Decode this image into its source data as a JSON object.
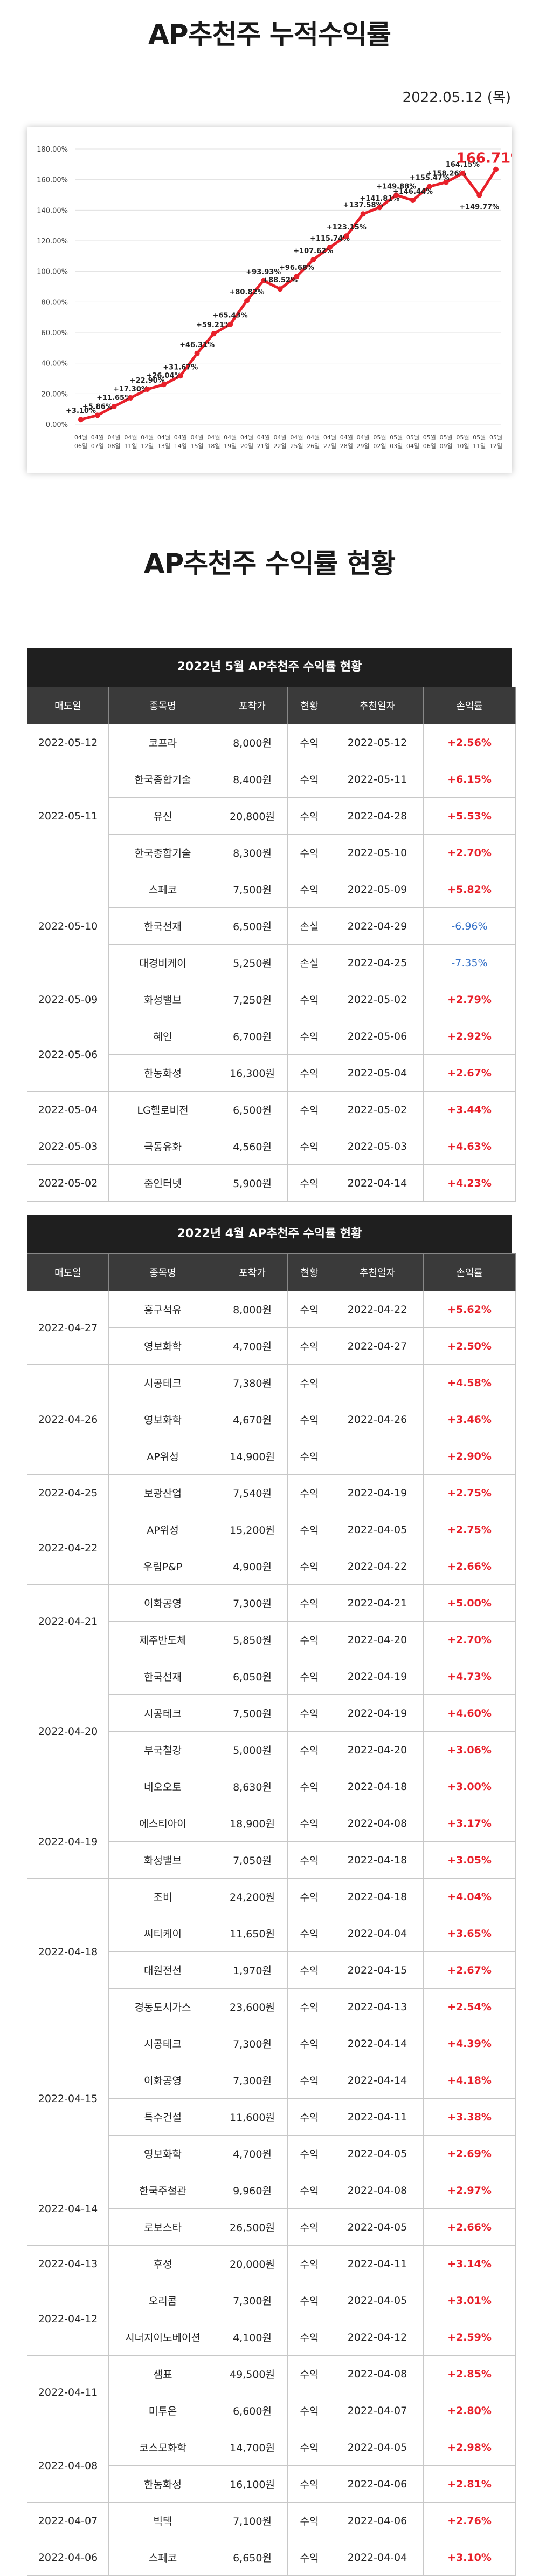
{
  "header": {
    "title": "AP추천주 누적수익률",
    "date": "2022.05.12 (목)"
  },
  "chart_data": {
    "type": "line",
    "ylim": [
      0,
      180
    ],
    "yticks": [
      "0.00%",
      "20.00%",
      "40.00%",
      "60.00%",
      "80.00%",
      "100.00%",
      "120.00%",
      "140.00%",
      "160.00%",
      "180.00%"
    ],
    "categories": [
      "04월 06일",
      "04월 07일",
      "04월 08일",
      "04월 11일",
      "04월 12일",
      "04월 13일",
      "04월 14일",
      "04월 15일",
      "04월 18일",
      "04월 19일",
      "04월 20일",
      "04월 21일",
      "04월 22일",
      "04월 25일",
      "04월 26일",
      "04월 27일",
      "04월 28일",
      "04월 29일",
      "05월 02일",
      "05월 03일",
      "05월 04일",
      "05월 06일",
      "05월 09일",
      "05월 10일",
      "05월 11일",
      "05월 12일"
    ],
    "values": [
      3.1,
      5.86,
      11.65,
      17.3,
      22.9,
      26.04,
      31.67,
      46.31,
      59.21,
      65.43,
      80.82,
      93.93,
      88.52,
      96.68,
      107.62,
      115.74,
      123.15,
      137.58,
      141.81,
      149.88,
      146.44,
      155.47,
      158.26,
      164.15,
      149.77,
      166.71
    ],
    "labels": [
      "+3.10%",
      "+5.86%",
      "+11.65%",
      "+17.30%",
      "+22.90%",
      "+26.04%",
      "+31.67%",
      "+46.31%",
      "+59.21%",
      "+65.43%",
      "+80.82%",
      "+93.93%",
      "+88.52%",
      "+96.68%",
      "+107.62%",
      "+115.74%",
      "+123.15%",
      "+137.58%",
      "+141.81%",
      "+149.88%",
      "+146.44%",
      "+155.47%",
      "+158.26%",
      "164.15%",
      "+149.77%",
      "166.71%"
    ],
    "line_color": "#e8202a"
  },
  "section_title": "AP추천주 수익률 현황",
  "columns": [
    "매도일",
    "종목명",
    "포착가",
    "현황",
    "추천일자",
    "손익률"
  ],
  "tables": [
    {
      "title": "2022년 5월 AP추천주 수익률 현황",
      "groups": [
        {
          "date": "2022-05-12",
          "rows": [
            {
              "name": "코프라",
              "price": "8,000원",
              "status": "수익",
              "rec": "2022-05-12",
              "rate": "+2.56%",
              "sign": "pos"
            }
          ]
        },
        {
          "date": "2022-05-11",
          "rows": [
            {
              "name": "한국종합기술",
              "price": "8,400원",
              "status": "수익",
              "rec": "2022-05-11",
              "rate": "+6.15%",
              "sign": "pos"
            },
            {
              "name": "유신",
              "price": "20,800원",
              "status": "수익",
              "rec": "2022-04-28",
              "rate": "+5.53%",
              "sign": "pos"
            },
            {
              "name": "한국종합기술",
              "price": "8,300원",
              "status": "수익",
              "rec": "2022-05-10",
              "rate": "+2.70%",
              "sign": "pos"
            }
          ]
        },
        {
          "date": "2022-05-10",
          "rows": [
            {
              "name": "스페코",
              "price": "7,500원",
              "status": "수익",
              "rec": "2022-05-09",
              "rate": "+5.82%",
              "sign": "pos"
            },
            {
              "name": "한국선재",
              "price": "6,500원",
              "status": "손실",
              "rec": "2022-04-29",
              "rate": "-6.96%",
              "sign": "neg"
            },
            {
              "name": "대경비케이",
              "price": "5,250원",
              "status": "손실",
              "rec": "2022-04-25",
              "rate": "-7.35%",
              "sign": "neg"
            }
          ]
        },
        {
          "date": "2022-05-09",
          "rows": [
            {
              "name": "화성밸브",
              "price": "7,250원",
              "status": "수익",
              "rec": "2022-05-02",
              "rate": "+2.79%",
              "sign": "pos"
            }
          ]
        },
        {
          "date": "2022-05-06",
          "rows": [
            {
              "name": "혜인",
              "price": "6,700원",
              "status": "수익",
              "rec": "2022-05-06",
              "rate": "+2.92%",
              "sign": "pos"
            },
            {
              "name": "한농화성",
              "price": "16,300원",
              "status": "수익",
              "rec": "2022-05-04",
              "rate": "+2.67%",
              "sign": "pos"
            }
          ]
        },
        {
          "date": "2022-05-04",
          "rows": [
            {
              "name": "LG헬로비전",
              "price": "6,500원",
              "status": "수익",
              "rec": "2022-05-02",
              "rate": "+3.44%",
              "sign": "pos"
            }
          ]
        },
        {
          "date": "2022-05-03",
          "rows": [
            {
              "name": "극동유화",
              "price": "4,560원",
              "status": "수익",
              "rec": "2022-05-03",
              "rate": "+4.63%",
              "sign": "pos"
            }
          ]
        },
        {
          "date": "2022-05-02",
          "rows": [
            {
              "name": "줌인터넷",
              "price": "5,900원",
              "status": "수익",
              "rec": "2022-04-14",
              "rate": "+4.23%",
              "sign": "pos"
            }
          ]
        }
      ]
    },
    {
      "title": "2022년 4월 AP추천주 수익률 현황",
      "groups": [
        {
          "date": "2022-04-27",
          "rows": [
            {
              "name": "흥구석유",
              "price": "8,000원",
              "status": "수익",
              "rec": "2022-04-22",
              "rate": "+5.62%",
              "sign": "pos"
            },
            {
              "name": "영보화학",
              "price": "4,700원",
              "status": "수익",
              "rec": "2022-04-27",
              "rate": "+2.50%",
              "sign": "pos"
            }
          ]
        },
        {
          "date": "2022-04-26",
          "rec_merged": "2022-04-26",
          "rows": [
            {
              "name": "시공테크",
              "price": "7,380원",
              "status": "수익",
              "rate": "+4.58%",
              "sign": "pos"
            },
            {
              "name": "영보화학",
              "price": "4,670원",
              "status": "수익",
              "rate": "+3.46%",
              "sign": "pos"
            },
            {
              "name": "AP위성",
              "price": "14,900원",
              "status": "수익",
              "rate": "+2.90%",
              "sign": "pos"
            }
          ]
        },
        {
          "date": "2022-04-25",
          "rows": [
            {
              "name": "보광산업",
              "price": "7,540원",
              "status": "수익",
              "rec": "2022-04-19",
              "rate": "+2.75%",
              "sign": "pos"
            }
          ]
        },
        {
          "date": "2022-04-22",
          "rows": [
            {
              "name": "AP위성",
              "price": "15,200원",
              "status": "수익",
              "rec": "2022-04-05",
              "rate": "+2.75%",
              "sign": "pos"
            },
            {
              "name": "우림P&P",
              "price": "4,900원",
              "status": "수익",
              "rec": "2022-04-22",
              "rate": "+2.66%",
              "sign": "pos"
            }
          ]
        },
        {
          "date": "2022-04-21",
          "rows": [
            {
              "name": "이화공영",
              "price": "7,300원",
              "status": "수익",
              "rec": "2022-04-21",
              "rate": "+5.00%",
              "sign": "pos"
            },
            {
              "name": "제주반도체",
              "price": "5,850원",
              "status": "수익",
              "rec": "2022-04-20",
              "rate": "+2.70%",
              "sign": "pos"
            }
          ]
        },
        {
          "date": "2022-04-20",
          "rows": [
            {
              "name": "한국선재",
              "price": "6,050원",
              "status": "수익",
              "rec": "2022-04-19",
              "rate": "+4.73%",
              "sign": "pos"
            },
            {
              "name": "시공테크",
              "price": "7,500원",
              "status": "수익",
              "rec": "2022-04-19",
              "rate": "+4.60%",
              "sign": "pos"
            },
            {
              "name": "부국철강",
              "price": "5,000원",
              "status": "수익",
              "rec": "2022-04-20",
              "rate": "+3.06%",
              "sign": "pos"
            },
            {
              "name": "네오오토",
              "price": "8,630원",
              "status": "수익",
              "rec": "2022-04-18",
              "rate": "+3.00%",
              "sign": "pos"
            }
          ]
        },
        {
          "date": "2022-04-19",
          "rows": [
            {
              "name": "에스티아이",
              "price": "18,900원",
              "status": "수익",
              "rec": "2022-04-08",
              "rate": "+3.17%",
              "sign": "pos"
            },
            {
              "name": "화성밸브",
              "price": "7,050원",
              "status": "수익",
              "rec": "2022-04-18",
              "rate": "+3.05%",
              "sign": "pos"
            }
          ]
        },
        {
          "date": "2022-04-18",
          "rows": [
            {
              "name": "조비",
              "price": "24,200원",
              "status": "수익",
              "rec": "2022-04-18",
              "rate": "+4.04%",
              "sign": "pos"
            },
            {
              "name": "씨티케이",
              "price": "11,650원",
              "status": "수익",
              "rec": "2022-04-04",
              "rate": "+3.65%",
              "sign": "pos"
            },
            {
              "name": "대원전선",
              "price": "1,970원",
              "status": "수익",
              "rec": "2022-04-15",
              "rate": "+2.67%",
              "sign": "pos"
            },
            {
              "name": "경동도시가스",
              "price": "23,600원",
              "status": "수익",
              "rec": "2022-04-13",
              "rate": "+2.54%",
              "sign": "pos"
            }
          ]
        },
        {
          "date": "2022-04-15",
          "rows": [
            {
              "name": "시공테크",
              "price": "7,300원",
              "status": "수익",
              "rec": "2022-04-14",
              "rate": "+4.39%",
              "sign": "pos"
            },
            {
              "name": "이화공영",
              "price": "7,300원",
              "status": "수익",
              "rec": "2022-04-14",
              "rate": "+4.18%",
              "sign": "pos"
            },
            {
              "name": "특수건설",
              "price": "11,600원",
              "status": "수익",
              "rec": "2022-04-11",
              "rate": "+3.38%",
              "sign": "pos"
            },
            {
              "name": "영보화학",
              "price": "4,700원",
              "status": "수익",
              "rec": "2022-04-05",
              "rate": "+2.69%",
              "sign": "pos"
            }
          ]
        },
        {
          "date": "2022-04-14",
          "rows": [
            {
              "name": "한국주철관",
              "price": "9,960원",
              "status": "수익",
              "rec": "2022-04-08",
              "rate": "+2.97%",
              "sign": "pos"
            },
            {
              "name": "로보스타",
              "price": "26,500원",
              "status": "수익",
              "rec": "2022-04-05",
              "rate": "+2.66%",
              "sign": "pos"
            }
          ]
        },
        {
          "date": "2022-04-13",
          "rows": [
            {
              "name": "후성",
              "price": "20,000원",
              "status": "수익",
              "rec": "2022-04-11",
              "rate": "+3.14%",
              "sign": "pos"
            }
          ]
        },
        {
          "date": "2022-04-12",
          "rows": [
            {
              "name": "오리콤",
              "price": "7,300원",
              "status": "수익",
              "rec": "2022-04-05",
              "rate": "+3.01%",
              "sign": "pos"
            },
            {
              "name": "시너지이노베이션",
              "price": "4,100원",
              "status": "수익",
              "rec": "2022-04-12",
              "rate": "+2.59%",
              "sign": "pos"
            }
          ]
        },
        {
          "date": "2022-04-11",
          "rows": [
            {
              "name": "샘표",
              "price": "49,500원",
              "status": "수익",
              "rec": "2022-04-08",
              "rate": "+2.85%",
              "sign": "pos"
            },
            {
              "name": "미투온",
              "price": "6,600원",
              "status": "수익",
              "rec": "2022-04-07",
              "rate": "+2.80%",
              "sign": "pos"
            }
          ]
        },
        {
          "date": "2022-04-08",
          "rows": [
            {
              "name": "코스모화학",
              "price": "14,700원",
              "status": "수익",
              "rec": "2022-04-05",
              "rate": "+2.98%",
              "sign": "pos"
            },
            {
              "name": "한농화성",
              "price": "16,100원",
              "status": "수익",
              "rec": "2022-04-06",
              "rate": "+2.81%",
              "sign": "pos"
            }
          ]
        },
        {
          "date": "2022-04-07",
          "rows": [
            {
              "name": "빅텍",
              "price": "7,100원",
              "status": "수익",
              "rec": "2022-04-06",
              "rate": "+2.76%",
              "sign": "pos"
            }
          ]
        },
        {
          "date": "2022-04-06",
          "rows": [
            {
              "name": "스페코",
              "price": "6,650원",
              "status": "수익",
              "rec": "2022-04-04",
              "rate": "+3.10%",
              "sign": "pos"
            }
          ]
        }
      ]
    }
  ]
}
